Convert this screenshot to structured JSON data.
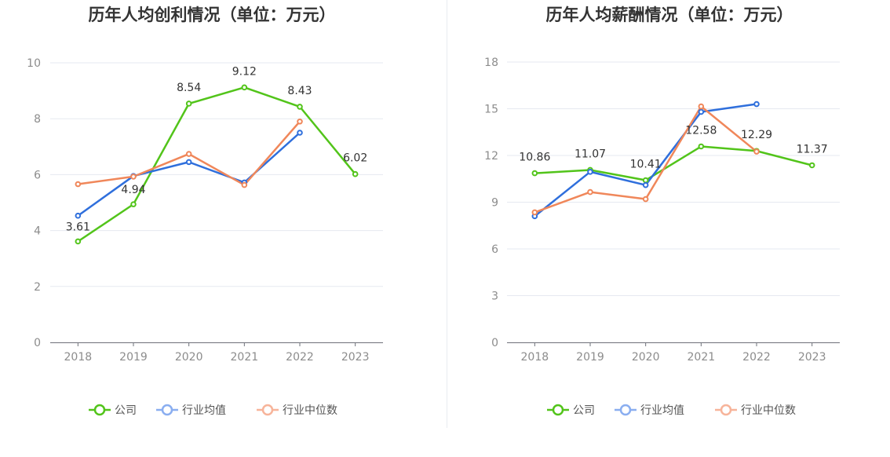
{
  "chart_data": [
    {
      "type": "line",
      "title": "历年人均创利情况（单位：万元）",
      "categories": [
        "2018",
        "2019",
        "2020",
        "2021",
        "2022",
        "2023"
      ],
      "ylim": [
        0,
        10
      ],
      "yticks": [
        "0",
        "2",
        "4",
        "6",
        "8",
        "10"
      ],
      "grid": true,
      "legend_position": "bottom",
      "series": [
        {
          "name": "公司",
          "color": "#52c41a",
          "values": [
            3.61,
            4.94,
            8.54,
            9.12,
            8.43,
            6.02
          ],
          "labels": [
            "3.61",
            "4.94",
            "8.54",
            "9.12",
            "8.43",
            "6.02"
          ]
        },
        {
          "name": "行业均值",
          "color": "#2f6fdc",
          "values": [
            4.53,
            5.95,
            6.45,
            5.72,
            7.5,
            null
          ]
        },
        {
          "name": "行业中位数",
          "color": "#f0875a",
          "values": [
            5.66,
            5.93,
            6.74,
            5.63,
            7.9,
            null
          ]
        }
      ]
    },
    {
      "type": "line",
      "title": "历年人均薪酬情况（单位：万元）",
      "categories": [
        "2018",
        "2019",
        "2020",
        "2021",
        "2022",
        "2023"
      ],
      "ylim": [
        0,
        18
      ],
      "yticks": [
        "0",
        "3",
        "6",
        "9",
        "12",
        "15",
        "18"
      ],
      "grid": true,
      "legend_position": "bottom",
      "series": [
        {
          "name": "公司",
          "color": "#52c41a",
          "values": [
            10.86,
            11.07,
            10.41,
            12.58,
            12.29,
            11.37
          ],
          "labels": [
            "10.86",
            "11.07",
            "10.41",
            "12.58",
            "12.29",
            "11.37"
          ]
        },
        {
          "name": "行业均值",
          "color": "#2f6fdc",
          "values": [
            8.1,
            10.95,
            10.1,
            14.8,
            15.3,
            null
          ]
        },
        {
          "name": "行业中位数",
          "color": "#f0875a",
          "values": [
            8.35,
            9.65,
            9.2,
            15.15,
            12.25,
            null
          ]
        }
      ]
    }
  ]
}
